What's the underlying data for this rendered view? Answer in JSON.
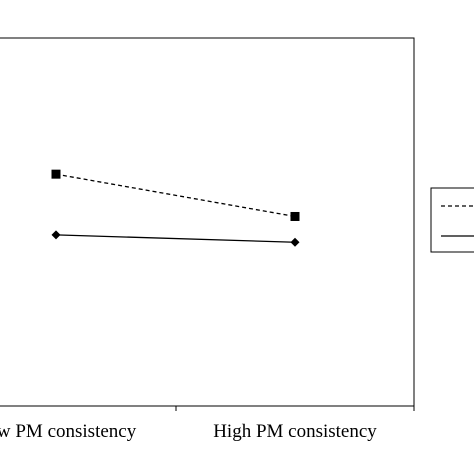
{
  "chart_data": {
    "type": "line",
    "categories": [
      "Low PM consistency",
      "High PM consistency"
    ],
    "series": [
      {
        "values": [
          0.63,
          0.515
        ],
        "line_style": "dashed",
        "marker": "square",
        "color": "#000000"
      },
      {
        "values": [
          0.465,
          0.445
        ],
        "line_style": "solid",
        "marker": "diamond",
        "color": "#000000"
      }
    ],
    "title": "",
    "xlabel": "",
    "ylabel": "",
    "ylim": [
      0,
      1
    ],
    "grid": false,
    "legend_position": "right"
  }
}
